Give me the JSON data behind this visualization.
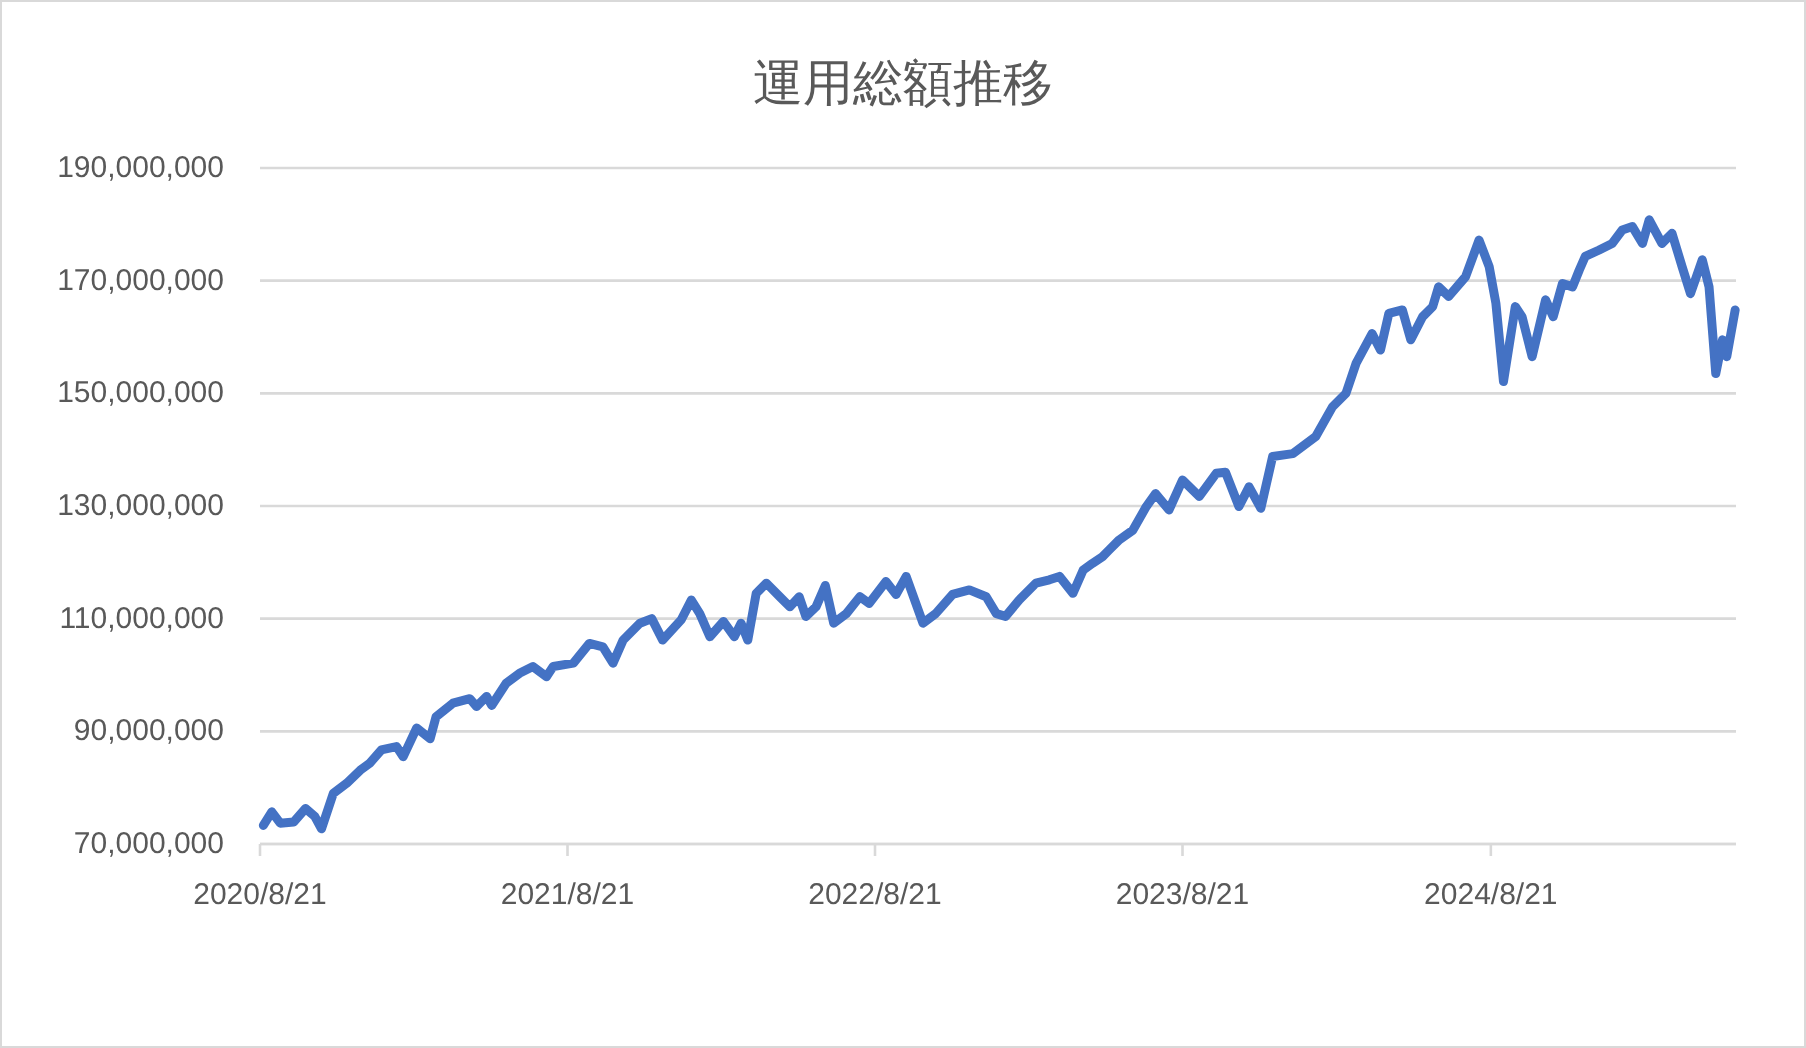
{
  "chart_data": {
    "type": "line",
    "title": "運用総額推移",
    "x": [
      "2020-08-25",
      "2020-09-04",
      "2020-09-14",
      "2020-09-30",
      "2020-10-14",
      "2020-10-25",
      "2020-11-02",
      "2020-11-16",
      "2020-12-02",
      "2020-12-18",
      "2020-12-29",
      "2021-01-12",
      "2021-01-30",
      "2021-02-07",
      "2021-02-23",
      "2021-03-11",
      "2021-03-18",
      "2021-04-07",
      "2021-04-27",
      "2021-05-05",
      "2021-05-17",
      "2021-05-23",
      "2021-06-09",
      "2021-06-25",
      "2021-07-11",
      "2021-07-27",
      "2021-08-04",
      "2021-08-28",
      "2021-09-16",
      "2021-10-02",
      "2021-10-14",
      "2021-10-26",
      "2021-11-15",
      "2021-11-29",
      "2021-12-12",
      "2022-01-03",
      "2022-01-15",
      "2022-01-25",
      "2022-02-06",
      "2022-02-22",
      "2022-03-07",
      "2022-03-15",
      "2022-03-23",
      "2022-04-02",
      "2022-04-14",
      "2022-04-30",
      "2022-05-12",
      "2022-05-23",
      "2022-05-31",
      "2022-06-12",
      "2022-06-23",
      "2022-07-03",
      "2022-07-18",
      "2022-08-03",
      "2022-08-14",
      "2022-09-03",
      "2022-09-15",
      "2022-09-27",
      "2022-10-17",
      "2022-11-01",
      "2022-11-21",
      "2022-12-11",
      "2022-12-31",
      "2023-01-12",
      "2023-01-23",
      "2023-02-08",
      "2023-02-28",
      "2023-03-16",
      "2023-03-28",
      "2023-04-13",
      "2023-04-25",
      "2023-05-06",
      "2023-05-18",
      "2023-05-26",
      "2023-06-07",
      "2023-06-23",
      "2023-07-09",
      "2023-07-20",
      "2023-08-05",
      "2023-08-21",
      "2023-09-10",
      "2023-09-30",
      "2023-10-11",
      "2023-10-27",
      "2023-11-08",
      "2023-11-22",
      "2023-12-06",
      "2023-12-30",
      "2024-01-26",
      "2024-02-15",
      "2024-03-02",
      "2024-03-14",
      "2024-04-02",
      "2024-04-12",
      "2024-04-22",
      "2024-05-08",
      "2024-05-18",
      "2024-06-01",
      "2024-06-13",
      "2024-06-20",
      "2024-07-02",
      "2024-07-22",
      "2024-08-07",
      "2024-08-19",
      "2024-08-27",
      "2024-09-05",
      "2024-09-19",
      "2024-09-27",
      "2024-10-09",
      "2024-10-25",
      "2024-11-03",
      "2024-11-14",
      "2024-11-26",
      "2024-12-04",
      "2024-12-11",
      "2024-12-27",
      "2025-01-12",
      "2025-01-24",
      "2025-02-05",
      "2025-02-17",
      "2025-02-25",
      "2025-03-12",
      "2025-03-24",
      "2025-04-05",
      "2025-04-15",
      "2025-04-29",
      "2025-05-07",
      "2025-05-15",
      "2025-05-23",
      "2025-05-28",
      "2025-06-07"
    ],
    "series": [
      {
        "color": "#4472c4",
        "values": [
          73300000,
          75700000,
          73700000,
          73900000,
          76300000,
          74900000,
          72700000,
          79000000,
          80800000,
          83100000,
          84300000,
          86700000,
          87300000,
          85500000,
          90600000,
          88700000,
          92600000,
          95000000,
          95800000,
          94400000,
          96200000,
          94600000,
          98500000,
          100300000,
          101500000,
          99700000,
          101500000,
          102100000,
          105600000,
          105000000,
          102100000,
          106200000,
          109200000,
          110000000,
          106200000,
          109800000,
          113300000,
          110900000,
          106800000,
          109500000,
          106800000,
          109200000,
          106200000,
          114500000,
          116300000,
          113900000,
          112100000,
          113900000,
          110400000,
          112100000,
          115900000,
          109200000,
          110900000,
          113900000,
          112700000,
          116600000,
          114300000,
          117500000,
          109200000,
          110900000,
          114300000,
          115100000,
          113900000,
          110900000,
          110400000,
          113300000,
          116300000,
          116900000,
          117500000,
          114500000,
          118600000,
          119800000,
          121000000,
          122200000,
          124000000,
          125700000,
          129900000,
          132200000,
          129300000,
          134600000,
          131700000,
          135800000,
          136000000,
          129900000,
          133400000,
          129600000,
          138800000,
          139300000,
          142300000,
          147600000,
          150000000,
          155300000,
          160600000,
          157700000,
          164200000,
          164800000,
          159500000,
          163600000,
          165400000,
          168900000,
          167200000,
          170700000,
          177200000,
          172500000,
          166000000,
          152100000,
          165400000,
          163600000,
          156500000,
          166600000,
          163600000,
          169500000,
          168900000,
          171900000,
          174300000,
          175400000,
          176600000,
          179000000,
          179600000,
          176600000,
          180800000,
          176600000,
          178400000,
          172500000,
          167700000,
          173700000,
          168900000,
          153500000,
          159500000,
          156500000,
          164800000
        ]
      }
    ],
    "xlim": [
      "2020-08-21",
      "2025-06-08"
    ],
    "xticks": [
      {
        "value": "2020-08-21",
        "label": "2020/8/21"
      },
      {
        "value": "2021-08-21",
        "label": "2021/8/21"
      },
      {
        "value": "2022-08-21",
        "label": "2022/8/21"
      },
      {
        "value": "2023-08-21",
        "label": "2023/8/21"
      },
      {
        "value": "2024-08-21",
        "label": "2024/8/21"
      }
    ],
    "ylim": [
      70000000,
      190000000
    ],
    "yticks": [
      {
        "value": 70000000,
        "label": "70,000,000"
      },
      {
        "value": 90000000,
        "label": "90,000,000"
      },
      {
        "value": 110000000,
        "label": "110,000,000"
      },
      {
        "value": 130000000,
        "label": "130,000,000"
      },
      {
        "value": 150000000,
        "label": "150,000,000"
      },
      {
        "value": 170000000,
        "label": "170,000,000"
      },
      {
        "value": 190000000,
        "label": "190,000,000"
      }
    ],
    "grid": "y"
  }
}
